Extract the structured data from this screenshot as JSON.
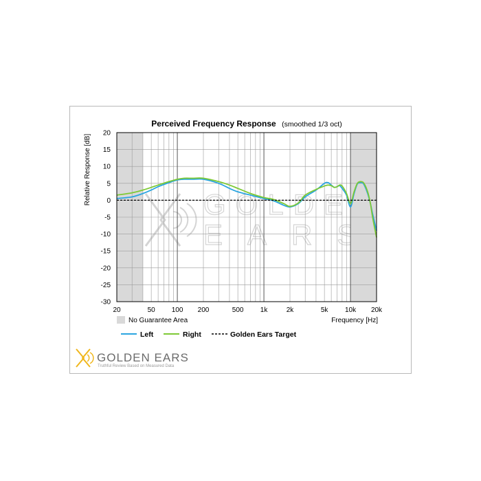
{
  "colors": {
    "left": "#2aa5e0",
    "right": "#7dc934",
    "target": "#000000",
    "no_guarantee": "#d9d9d9",
    "grid": "#9a9a9a",
    "brand_accent": "#f0b71d"
  },
  "watermark": {
    "line1": "GOLDEN",
    "line2": "EARS"
  },
  "branding": {
    "name": "GOLDEN EARS",
    "tagline": "Truthful Review Based on Measured Data",
    "logo_icon": "golden-ears-logo-icon"
  },
  "legend": {
    "no_guarantee_label": "No Guarantee Area",
    "left_label": "Left",
    "right_label": "Right",
    "target_label": "Golden Ears Target"
  },
  "chart_data": {
    "type": "line",
    "title": "Perceived Frequency Response",
    "subtitle": "(smoothed 1/3 oct)",
    "xlabel": "Frequency [Hz]",
    "ylabel": "Relative Response [dB]",
    "x_scale": "log",
    "xlim": [
      20,
      20000
    ],
    "ylim": [
      -30,
      20
    ],
    "y_ticks": [
      20,
      15,
      10,
      5,
      0,
      -5,
      -10,
      -15,
      -20,
      -25,
      -30
    ],
    "y_tick_labels": [
      "20",
      "15",
      "10",
      "5",
      "0",
      "-5",
      "-10",
      "-15",
      "-20",
      "-25",
      "-30"
    ],
    "x_ticks": [
      20,
      50,
      100,
      200,
      500,
      1000,
      2000,
      5000,
      10000,
      20000
    ],
    "x_tick_labels": [
      "20",
      "50",
      "100",
      "200",
      "500",
      "1k",
      "2k",
      "5k",
      "10k",
      "20k"
    ],
    "grid": true,
    "no_guarantee_ranges": [
      [
        20,
        40
      ],
      [
        10000,
        20000
      ]
    ],
    "series": [
      {
        "name": "Left",
        "x": [
          20,
          30,
          40,
          50,
          60,
          80,
          100,
          120,
          150,
          200,
          300,
          400,
          500,
          700,
          1000,
          1300,
          1700,
          2000,
          2500,
          3000,
          4000,
          5000,
          5500,
          6000,
          6500,
          7000,
          7500,
          8000,
          9000,
          10000,
          11000,
          12000,
          13000,
          14000,
          15000,
          16000,
          17000,
          18000,
          20000
        ],
        "values": [
          0.5,
          1.0,
          2.0,
          3.0,
          4.0,
          5.2,
          6.0,
          6.2,
          6.2,
          6.2,
          5.0,
          3.5,
          2.5,
          1.5,
          0.5,
          -0.2,
          -1.5,
          -2.0,
          -1.0,
          1.0,
          3.0,
          5.0,
          5.2,
          4.5,
          3.8,
          4.0,
          4.3,
          3.5,
          1.5,
          -2.0,
          2.0,
          4.8,
          5.2,
          5.0,
          3.5,
          1.5,
          -1.0,
          -4.0,
          -9.0
        ]
      },
      {
        "name": "Right",
        "x": [
          20,
          30,
          40,
          50,
          60,
          80,
          100,
          120,
          150,
          200,
          300,
          400,
          500,
          700,
          1000,
          1300,
          1700,
          2000,
          2500,
          3000,
          4000,
          5000,
          5500,
          6000,
          6500,
          7000,
          7500,
          8000,
          9000,
          10000,
          11000,
          12000,
          13000,
          14000,
          15000,
          16000,
          17000,
          18000,
          20000
        ],
        "values": [
          1.5,
          2.2,
          3.0,
          3.8,
          4.5,
          5.5,
          6.2,
          6.5,
          6.5,
          6.5,
          5.5,
          4.5,
          3.5,
          2.0,
          0.8,
          0.2,
          -1.0,
          -1.8,
          -0.8,
          1.5,
          3.2,
          4.2,
          4.5,
          4.3,
          3.8,
          4.0,
          4.5,
          4.2,
          2.0,
          -1.0,
          2.5,
          5.0,
          5.5,
          5.3,
          4.0,
          2.0,
          -1.0,
          -5.0,
          -11.0
        ]
      },
      {
        "name": "Golden Ears Target",
        "x": [
          20,
          20000
        ],
        "values": [
          0,
          0
        ]
      }
    ]
  }
}
